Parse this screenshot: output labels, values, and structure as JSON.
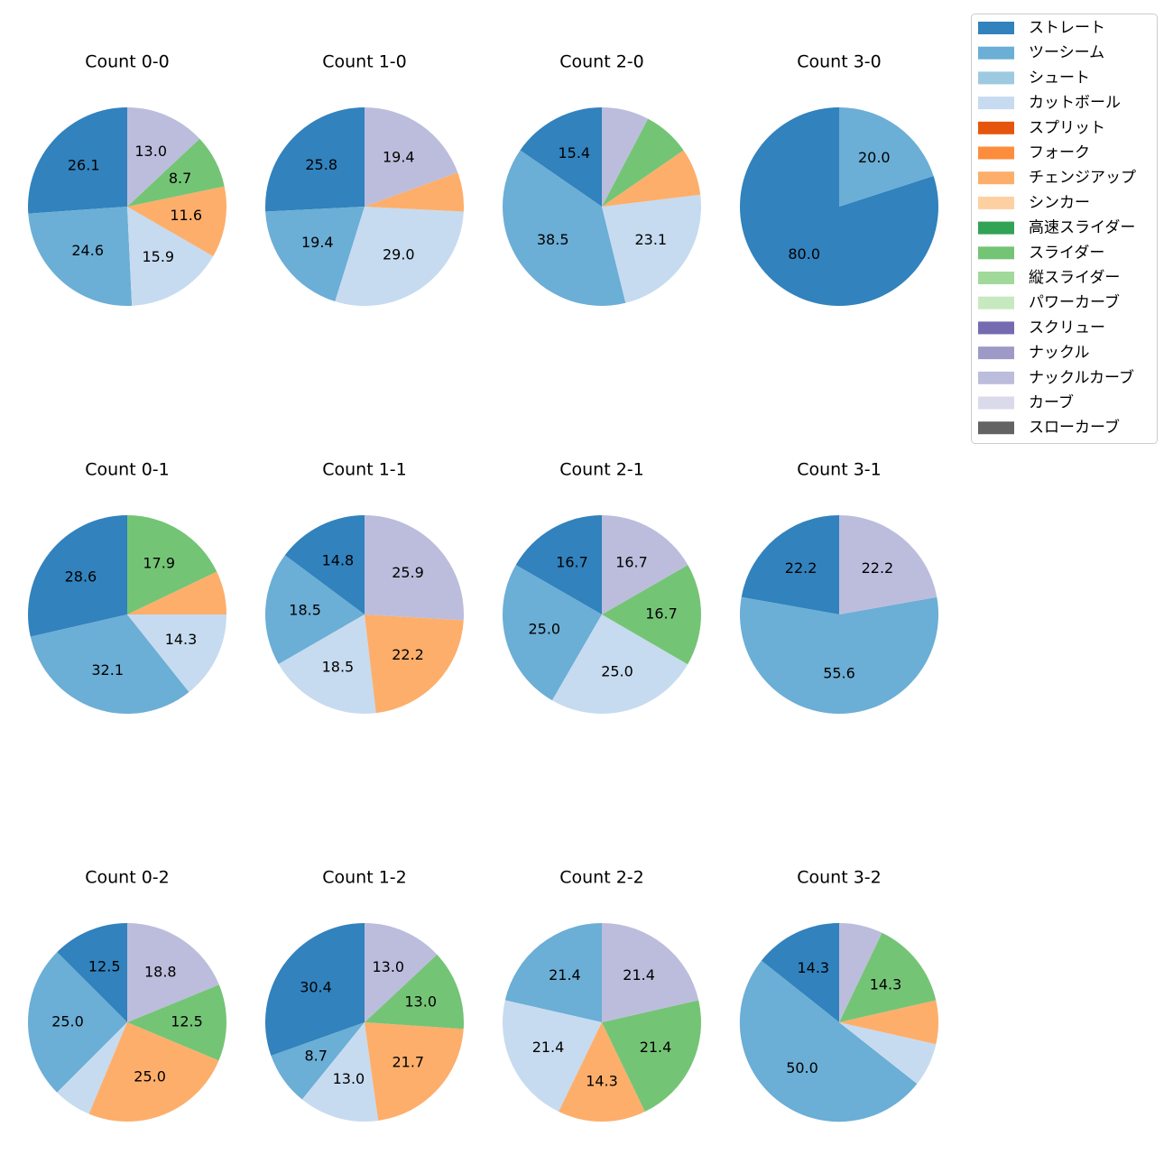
{
  "chart_data": {
    "type": "pie",
    "title": "",
    "legend_position": "top-right",
    "legend": [
      {
        "name": "ストレート",
        "color": "#3182bd"
      },
      {
        "name": "ツーシーム",
        "color": "#6baed6"
      },
      {
        "name": "シュート",
        "color": "#9ecae1"
      },
      {
        "name": "カットボール",
        "color": "#c6dbef"
      },
      {
        "name": "スプリット",
        "color": "#e6550d"
      },
      {
        "name": "フォーク",
        "color": "#fd8d3c"
      },
      {
        "name": "チェンジアップ",
        "color": "#fdae6b"
      },
      {
        "name": "シンカー",
        "color": "#fdd0a2"
      },
      {
        "name": "高速スライダー",
        "color": "#31a354"
      },
      {
        "name": "スライダー",
        "color": "#74c476"
      },
      {
        "name": "縦スライダー",
        "color": "#a1d99b"
      },
      {
        "name": "パワーカーブ",
        "color": "#c7e9c0"
      },
      {
        "name": "スクリュー",
        "color": "#756bb1"
      },
      {
        "name": "ナックル",
        "color": "#9e9ac8"
      },
      {
        "name": "ナックルカーブ",
        "color": "#bcbddc"
      },
      {
        "name": "カーブ",
        "color": "#dadaeb"
      },
      {
        "name": "スローカーブ",
        "color": "#636363"
      }
    ],
    "pies": [
      {
        "title": "Count 0-0",
        "slices": [
          {
            "pitch": "ストレート",
            "value": 26.1,
            "label": "26.1"
          },
          {
            "pitch": "ツーシーム",
            "value": 24.6,
            "label": "24.6"
          },
          {
            "pitch": "カットボール",
            "value": 15.9,
            "label": "15.9"
          },
          {
            "pitch": "チェンジアップ",
            "value": 11.6,
            "label": "11.6"
          },
          {
            "pitch": "スライダー",
            "value": 8.7,
            "label": "8.7"
          },
          {
            "pitch": "ナックルカーブ",
            "value": 13.0,
            "label": "13.0"
          }
        ]
      },
      {
        "title": "Count 1-0",
        "slices": [
          {
            "pitch": "ストレート",
            "value": 25.8,
            "label": "25.8"
          },
          {
            "pitch": "ツーシーム",
            "value": 19.4,
            "label": "19.4"
          },
          {
            "pitch": "カットボール",
            "value": 29.0,
            "label": "29.0"
          },
          {
            "pitch": "チェンジアップ",
            "value": 6.4,
            "label": ""
          },
          {
            "pitch": "ナックルカーブ",
            "value": 19.4,
            "label": "19.4"
          }
        ]
      },
      {
        "title": "Count 2-0",
        "slices": [
          {
            "pitch": "ストレート",
            "value": 15.4,
            "label": "15.4"
          },
          {
            "pitch": "ツーシーム",
            "value": 38.5,
            "label": "38.5"
          },
          {
            "pitch": "カットボール",
            "value": 23.1,
            "label": "23.1"
          },
          {
            "pitch": "チェンジアップ",
            "value": 7.7,
            "label": ""
          },
          {
            "pitch": "スライダー",
            "value": 7.7,
            "label": ""
          },
          {
            "pitch": "ナックルカーブ",
            "value": 7.7,
            "label": ""
          }
        ]
      },
      {
        "title": "Count 3-0",
        "slices": [
          {
            "pitch": "ストレート",
            "value": 80.0,
            "label": "80.0"
          },
          {
            "pitch": "ツーシーム",
            "value": 20.0,
            "label": "20.0"
          }
        ]
      },
      {
        "title": "Count 0-1",
        "slices": [
          {
            "pitch": "ストレート",
            "value": 28.6,
            "label": "28.6"
          },
          {
            "pitch": "ツーシーム",
            "value": 32.1,
            "label": "32.1"
          },
          {
            "pitch": "カットボール",
            "value": 14.3,
            "label": "14.3"
          },
          {
            "pitch": "チェンジアップ",
            "value": 7.1,
            "label": ""
          },
          {
            "pitch": "スライダー",
            "value": 17.9,
            "label": "17.9"
          }
        ]
      },
      {
        "title": "Count 1-1",
        "slices": [
          {
            "pitch": "ストレート",
            "value": 14.8,
            "label": "14.8"
          },
          {
            "pitch": "ツーシーム",
            "value": 18.5,
            "label": "18.5"
          },
          {
            "pitch": "カットボール",
            "value": 18.5,
            "label": "18.5"
          },
          {
            "pitch": "チェンジアップ",
            "value": 22.2,
            "label": "22.2"
          },
          {
            "pitch": "ナックルカーブ",
            "value": 25.9,
            "label": "25.9"
          }
        ]
      },
      {
        "title": "Count 2-1",
        "slices": [
          {
            "pitch": "ストレート",
            "value": 16.7,
            "label": "16.7"
          },
          {
            "pitch": "ツーシーム",
            "value": 25.0,
            "label": "25.0"
          },
          {
            "pitch": "カットボール",
            "value": 25.0,
            "label": "25.0"
          },
          {
            "pitch": "スライダー",
            "value": 16.7,
            "label": "16.7"
          },
          {
            "pitch": "ナックルカーブ",
            "value": 16.7,
            "label": "16.7"
          }
        ]
      },
      {
        "title": "Count 3-1",
        "slices": [
          {
            "pitch": "ストレート",
            "value": 22.2,
            "label": "22.2"
          },
          {
            "pitch": "ツーシーム",
            "value": 55.6,
            "label": "55.6"
          },
          {
            "pitch": "ナックルカーブ",
            "value": 22.2,
            "label": "22.2"
          }
        ]
      },
      {
        "title": "Count 0-2",
        "slices": [
          {
            "pitch": "ストレート",
            "value": 12.5,
            "label": "12.5"
          },
          {
            "pitch": "ツーシーム",
            "value": 25.0,
            "label": "25.0"
          },
          {
            "pitch": "カットボール",
            "value": 6.2,
            "label": ""
          },
          {
            "pitch": "チェンジアップ",
            "value": 25.0,
            "label": "25.0"
          },
          {
            "pitch": "スライダー",
            "value": 12.5,
            "label": "12.5"
          },
          {
            "pitch": "ナックルカーブ",
            "value": 18.8,
            "label": "18.8"
          }
        ]
      },
      {
        "title": "Count 1-2",
        "slices": [
          {
            "pitch": "ストレート",
            "value": 30.4,
            "label": "30.4"
          },
          {
            "pitch": "ツーシーム",
            "value": 8.7,
            "label": "8.7"
          },
          {
            "pitch": "カットボール",
            "value": 13.0,
            "label": "13.0"
          },
          {
            "pitch": "チェンジアップ",
            "value": 21.7,
            "label": "21.7"
          },
          {
            "pitch": "スライダー",
            "value": 13.0,
            "label": "13.0"
          },
          {
            "pitch": "ナックルカーブ",
            "value": 13.0,
            "label": "13.0"
          }
        ]
      },
      {
        "title": "Count 2-2",
        "slices": [
          {
            "pitch": "ツーシーム",
            "value": 21.4,
            "label": "21.4"
          },
          {
            "pitch": "カットボール",
            "value": 21.4,
            "label": "21.4"
          },
          {
            "pitch": "チェンジアップ",
            "value": 14.3,
            "label": "14.3"
          },
          {
            "pitch": "スライダー",
            "value": 21.4,
            "label": "21.4"
          },
          {
            "pitch": "ナックルカーブ",
            "value": 21.4,
            "label": "21.4"
          }
        ]
      },
      {
        "title": "Count 3-2",
        "slices": [
          {
            "pitch": "ストレート",
            "value": 14.3,
            "label": "14.3"
          },
          {
            "pitch": "ツーシーム",
            "value": 50.0,
            "label": "50.0"
          },
          {
            "pitch": "カットボール",
            "value": 7.1,
            "label": ""
          },
          {
            "pitch": "チェンジアップ",
            "value": 7.1,
            "label": ""
          },
          {
            "pitch": "スライダー",
            "value": 14.3,
            "label": "14.3"
          },
          {
            "pitch": "ナックルカーブ",
            "value": 7.1,
            "label": ""
          }
        ]
      }
    ]
  }
}
